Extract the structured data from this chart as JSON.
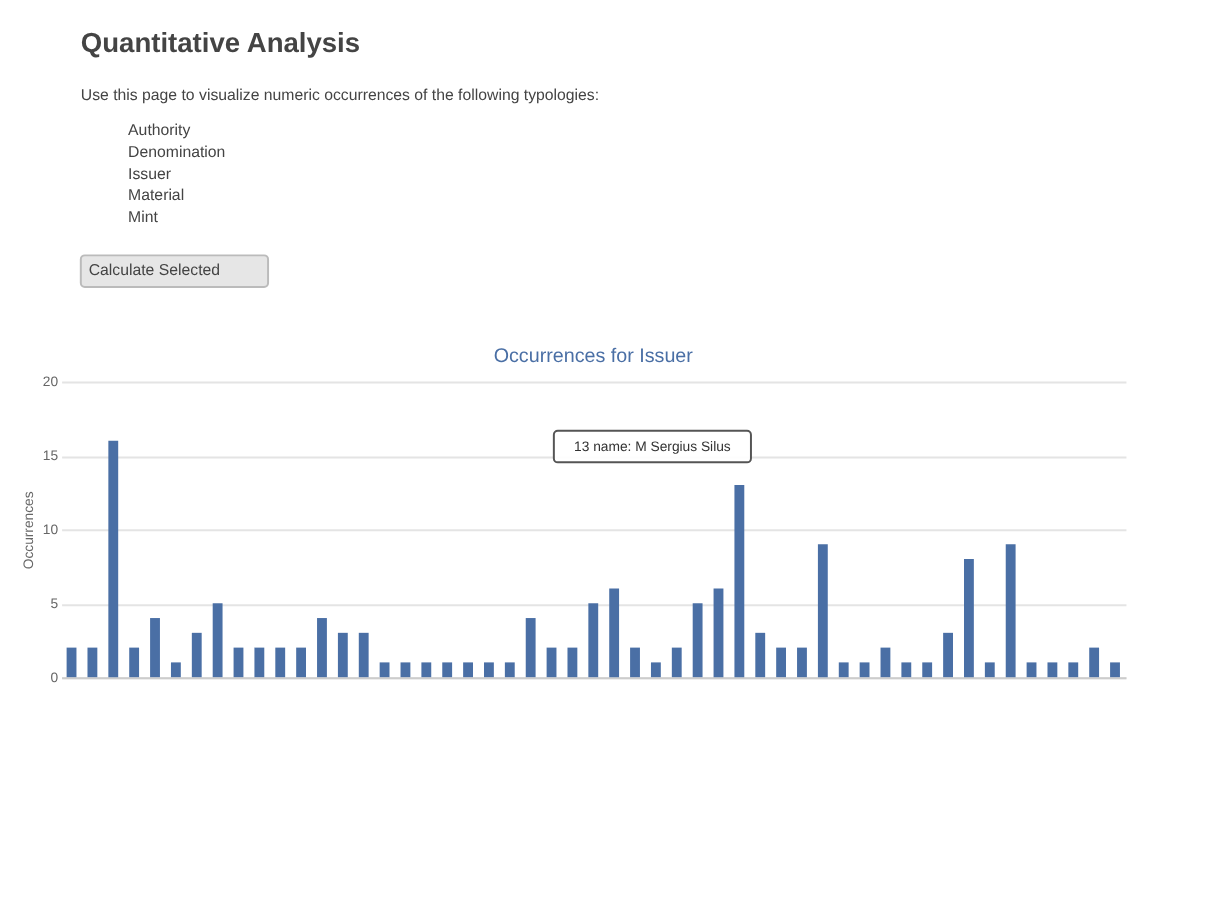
{
  "chart_data": {
    "type": "bar",
    "title": "Occurrences for Issuer",
    "ylabel": "Occurrences",
    "categories": [
      null,
      null,
      null,
      null,
      null,
      null,
      null,
      null,
      null,
      null,
      null,
      null,
      null,
      null,
      null,
      null,
      null,
      null,
      null,
      null,
      null,
      null,
      null,
      null,
      null,
      null,
      null,
      null,
      null,
      null,
      null,
      null,
      null,
      null,
      null,
      null,
      null,
      null,
      null,
      null,
      null,
      null,
      null,
      null,
      null,
      null,
      null,
      null,
      null,
      null,
      null
    ],
    "values": [
      2,
      2,
      16,
      2,
      4,
      1,
      3,
      5,
      2,
      2,
      2,
      2,
      4,
      3,
      3,
      1,
      1,
      1,
      1,
      1,
      1,
      1,
      4,
      2,
      2,
      5,
      6,
      2,
      1,
      2,
      5,
      6,
      13,
      3,
      2,
      2,
      9,
      1,
      1,
      2,
      1,
      1,
      3,
      8,
      1,
      9,
      1,
      1,
      1,
      2,
      1
    ],
    "color": "#4a6fa5",
    "ylim": [
      0,
      20
    ],
    "yticks": [
      0,
      5,
      10,
      15,
      20
    ],
    "grid": "y",
    "tick_labels": "y",
    "annotations": [
      "Quantitative Analysis",
      "Use this page to visualize numeric occurrences of the following typologies:",
      "Authority",
      "Denomination",
      "Issuer",
      "Material",
      "Mint",
      "Calculate Selected",
      "13 name: M Sergius Silus"
    ]
  }
}
